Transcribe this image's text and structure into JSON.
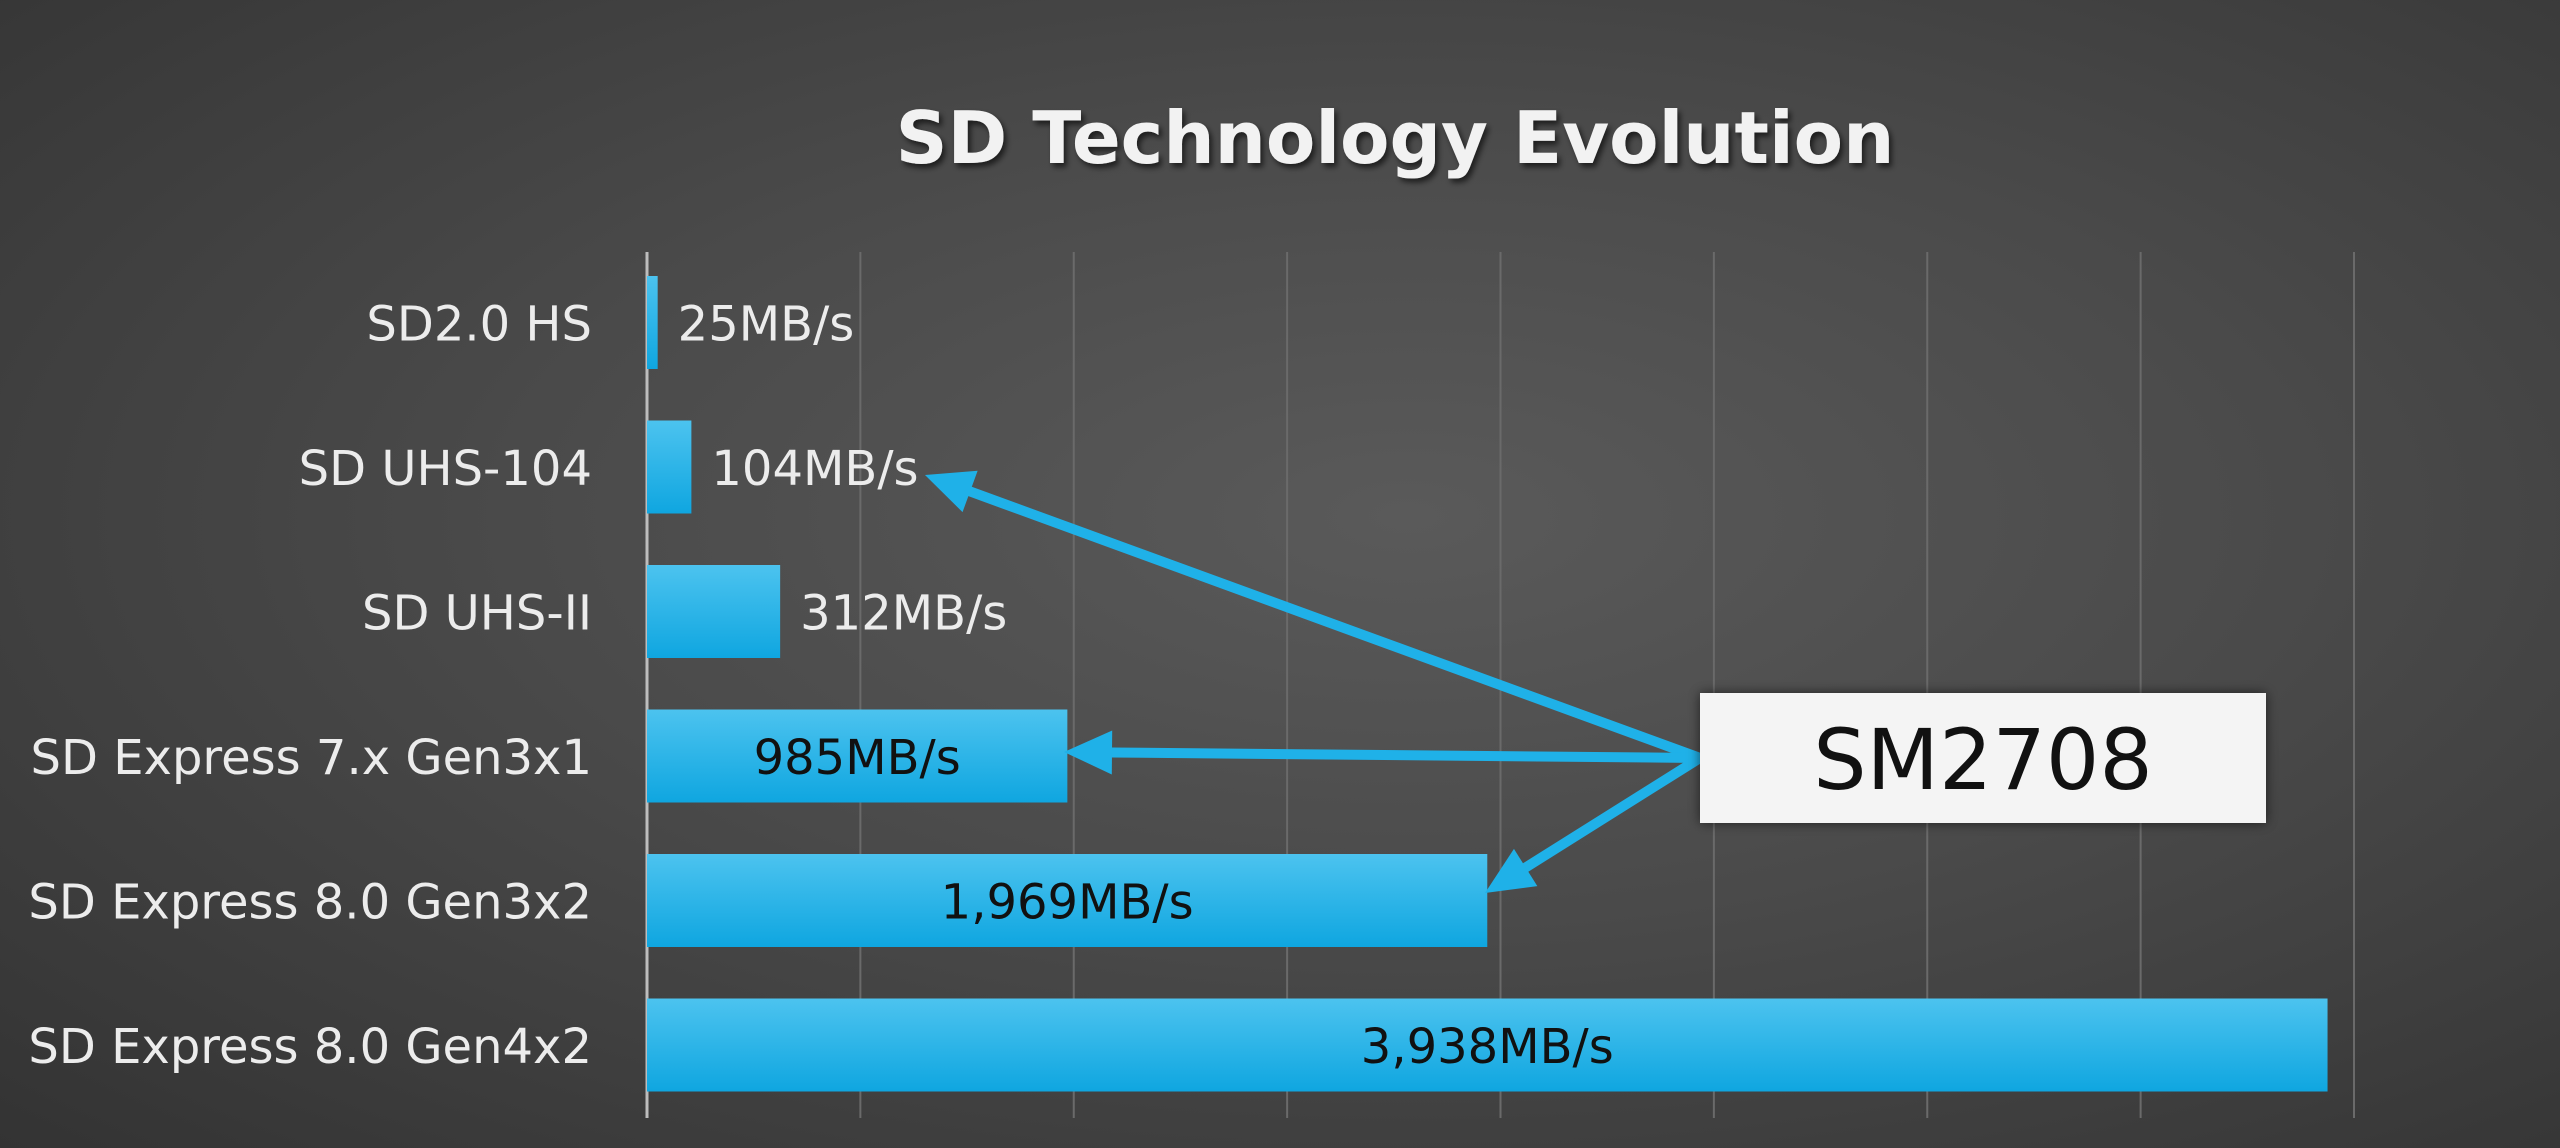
{
  "chart_data": {
    "type": "bar",
    "orientation": "horizontal",
    "title": "SD Technology Evolution",
    "categories": [
      "SD2.0 HS",
      "SD UHS-104",
      "SD UHS-II",
      "SD Express 7.x Gen3x1",
      "SD Express 8.0 Gen3x2",
      "SD Express 8.0 Gen4x2"
    ],
    "series": [
      {
        "values": [
          25,
          104,
          312,
          985,
          1969,
          3938
        ]
      }
    ],
    "data_labels": [
      "25MB/s",
      "104MB/s",
      "312MB/s",
      "985MB/s",
      "1,969MB/s",
      "3,938MB/s"
    ],
    "xlim": [
      0,
      4000
    ],
    "grid": true,
    "bar_color": "#1fb1e8",
    "callout": {
      "text": "SM2708",
      "points_to": [
        "SD UHS-104",
        "SD Express 7.x Gen3x1",
        "SD Express 8.0 Gen3x2"
      ]
    }
  },
  "colors": {
    "text": "#ececec",
    "inside_label": "#111111",
    "grid": "#6a6a6a",
    "arrow": "#1fb1e8"
  }
}
